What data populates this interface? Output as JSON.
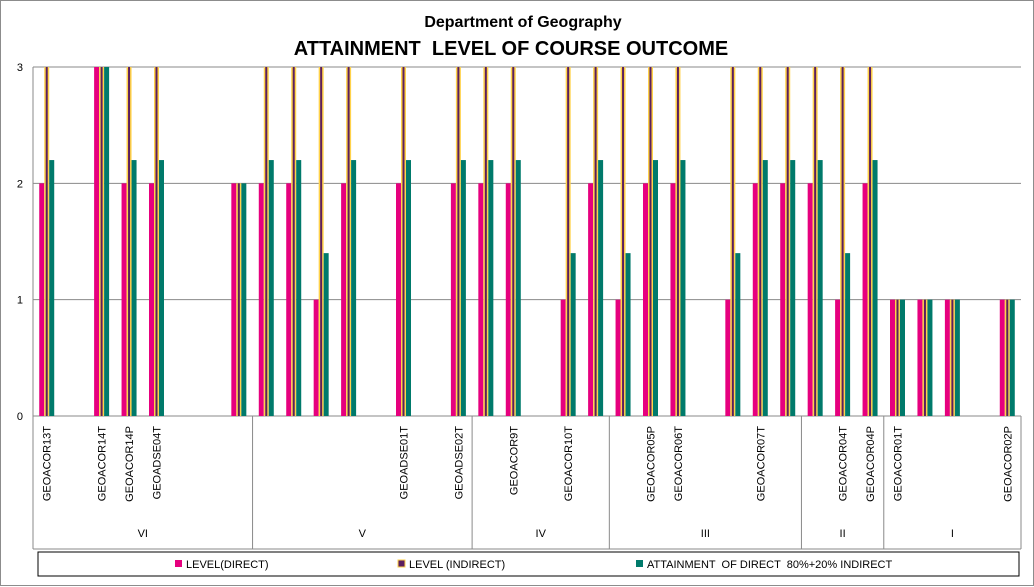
{
  "title": "Department of Geography",
  "subtitle": "ATTAINMENT  LEVEL OF COURSE OUTCOME",
  "chart_data": {
    "type": "bar",
    "title": "Department of Geography",
    "subtitle": "ATTAINMENT  LEVEL OF COURSE OUTCOME",
    "ylim": [
      0,
      3
    ],
    "yticks": [
      "0",
      "1",
      "2",
      "3"
    ],
    "grid": true,
    "legend_position": "bottom",
    "colors": {
      "direct": "#e6007e",
      "indirect": "#5b1f5e",
      "indirect_edge": "#ffd24a",
      "attainment": "#007a6b"
    },
    "categories": [
      "GEOACOR13T",
      "",
      "GEOACOR14T",
      "GEOACOR14P",
      "GEOADSE04T",
      "",
      "",
      "",
      "",
      "",
      "",
      "",
      "",
      "GEOADSE01T",
      "",
      "GEOADSE02T",
      "",
      "GEOACOR9T",
      "",
      "GEOACOR10T",
      "",
      "",
      "GEOACOR05P",
      "GEOACOR06T",
      "",
      "",
      "GEOACOR07T",
      "",
      "",
      "GEOACOR04T",
      "GEOACOR04P",
      "GEOACOR01T",
      "",
      "",
      "",
      "GEOACOR02P"
    ],
    "groups": [
      {
        "label": "VI",
        "count": 8
      },
      {
        "label": "V",
        "count": 8
      },
      {
        "label": "IV",
        "count": 5
      },
      {
        "label": "III",
        "count": 7
      },
      {
        "label": "II",
        "count": 3
      },
      {
        "label": "I",
        "count": 5
      }
    ],
    "series": [
      {
        "name": "LEVEL(DIRECT)",
        "key": "direct",
        "values": [
          2,
          0,
          3,
          2,
          2,
          0,
          0,
          2,
          2,
          2,
          1,
          2,
          0,
          2,
          0,
          2,
          2,
          2,
          0,
          1,
          2,
          1,
          2,
          2,
          0,
          1,
          2,
          2,
          2,
          1,
          2,
          1,
          1,
          1,
          0,
          1
        ]
      },
      {
        "name": "LEVEL (INDIRECT)",
        "key": "indirect",
        "values": [
          3,
          0,
          3,
          3,
          3,
          0,
          0,
          2,
          3,
          3,
          3,
          3,
          0,
          3,
          0,
          3,
          3,
          3,
          0,
          3,
          3,
          3,
          3,
          3,
          0,
          3,
          3,
          3,
          3,
          3,
          3,
          1,
          1,
          1,
          0,
          1
        ]
      },
      {
        "name": "ATTAINMENT  OF DIRECT  80%+20% INDIRECT",
        "key": "attainment",
        "values": [
          2.2,
          0,
          3,
          2.2,
          2.2,
          0,
          0,
          2,
          2.2,
          2.2,
          1.4,
          2.2,
          0,
          2.2,
          0,
          2.2,
          2.2,
          2.2,
          0,
          1.4,
          2.2,
          1.4,
          2.2,
          2.2,
          0,
          1.4,
          2.2,
          2.2,
          2.2,
          1.4,
          2.2,
          1,
          1,
          1,
          0,
          1
        ]
      }
    ]
  }
}
